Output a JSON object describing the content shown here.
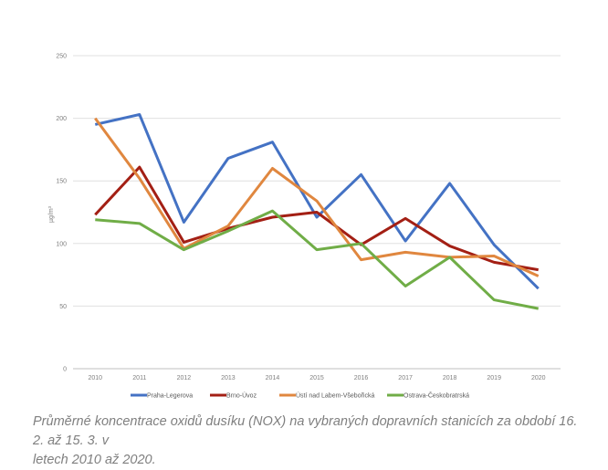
{
  "chart_data": {
    "type": "line",
    "title": "",
    "xlabel": "",
    "ylabel": "µg/m³",
    "ylim": [
      0,
      250
    ],
    "yticks": [
      0,
      50,
      100,
      150,
      200,
      250
    ],
    "grid": true,
    "legend_position": "bottom",
    "categories": [
      "2010",
      "2011",
      "2012",
      "2013",
      "2014",
      "2015",
      "2016",
      "2017",
      "2018",
      "2019",
      "2020"
    ],
    "series": [
      {
        "name": "Praha-Legerova",
        "color": "#4472c4",
        "values": [
          195,
          203,
          117,
          168,
          181,
          121,
          155,
          102,
          148,
          99,
          64
        ]
      },
      {
        "name": "Brno-Úvoz",
        "color": "#a31f14",
        "values": [
          123,
          161,
          101,
          112,
          121,
          125,
          99,
          120,
          98,
          85,
          79
        ]
      },
      {
        "name": "Ústí nad Labem-Všebořická",
        "color": "#e0873f",
        "values": [
          200,
          152,
          96,
          114,
          160,
          134,
          87,
          93,
          89,
          90,
          74
        ]
      },
      {
        "name": "Ostrava-Českobratrská",
        "color": "#70ad47",
        "values": [
          119,
          116,
          95,
          110,
          126,
          95,
          100,
          66,
          89,
          55,
          48
        ]
      }
    ]
  },
  "caption": {
    "line1": "Průměrné koncentrace oxidů dusíku (NOX) na vybraných dopravních stanicích za období 16. 2. až 15. 3. v",
    "line2": "letech 2010 až 2020."
  }
}
